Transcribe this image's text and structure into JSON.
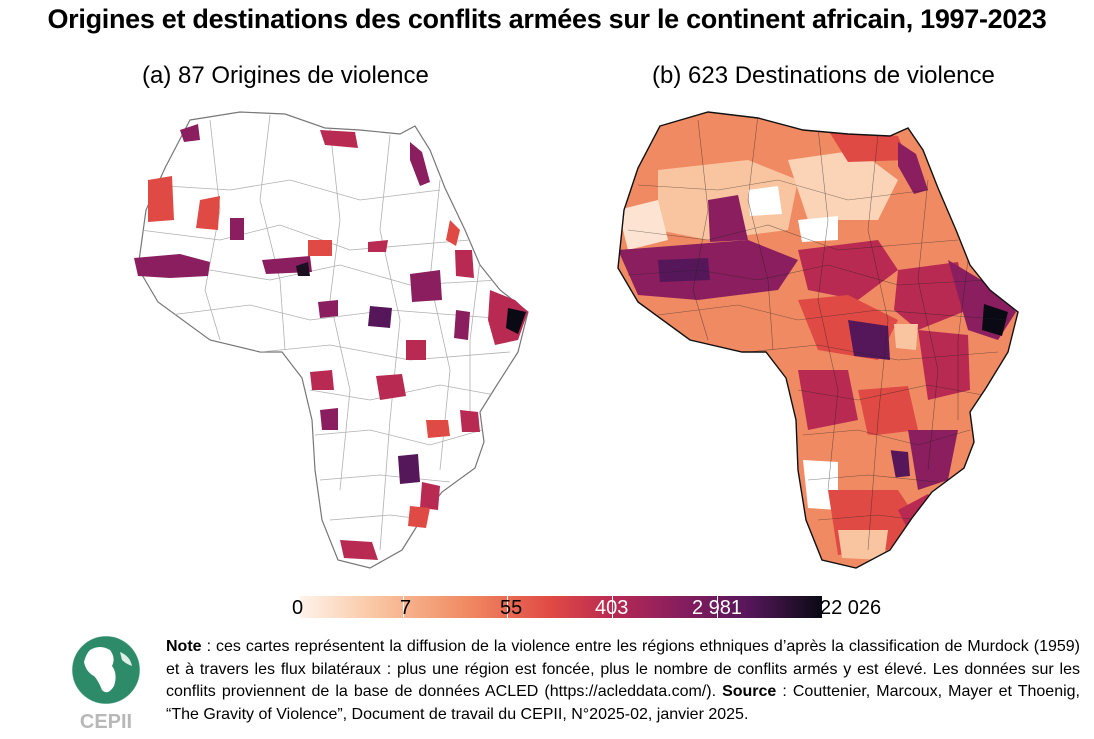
{
  "title": "Origines et destinations des conflits armées sur le continent africain, 1997-2023",
  "maps": [
    {
      "caption": "(a) 87 Origines de violence"
    },
    {
      "caption": "(b) 623 Destinations de violence"
    }
  ],
  "legend": {
    "labels": [
      "0",
      "7",
      "55",
      "403",
      "2 981",
      "22 026"
    ]
  },
  "colors": {
    "scale": [
      "#fff3ea",
      "#f9c4a0",
      "#f08a62",
      "#e04a44",
      "#b82a52",
      "#8a1e5e",
      "#55175a",
      "#0a0a14"
    ],
    "border": "#9a9a9a",
    "logo_green": "#2e8b6a"
  },
  "logo": {
    "text": "CEPII"
  },
  "note": {
    "note_label": "Note",
    "note_text": " : ces cartes représentent la diffusion de la violence entre les régions ethniques d’après la classification de Murdock (1959) et à travers les flux bilatéraux : plus une région est foncée, plus le nombre de conflits armés y est élevé. Les données sur les conflits proviennent de la base de données ACLED (https://acleddata.com/). ",
    "source_label": "Source",
    "source_text": " : Couttenier, Marcoux, Mayer et Thoenig, “The Gravity of Violence”, Document de travail du CEPII, N°2025-02, janvier 2025."
  }
}
